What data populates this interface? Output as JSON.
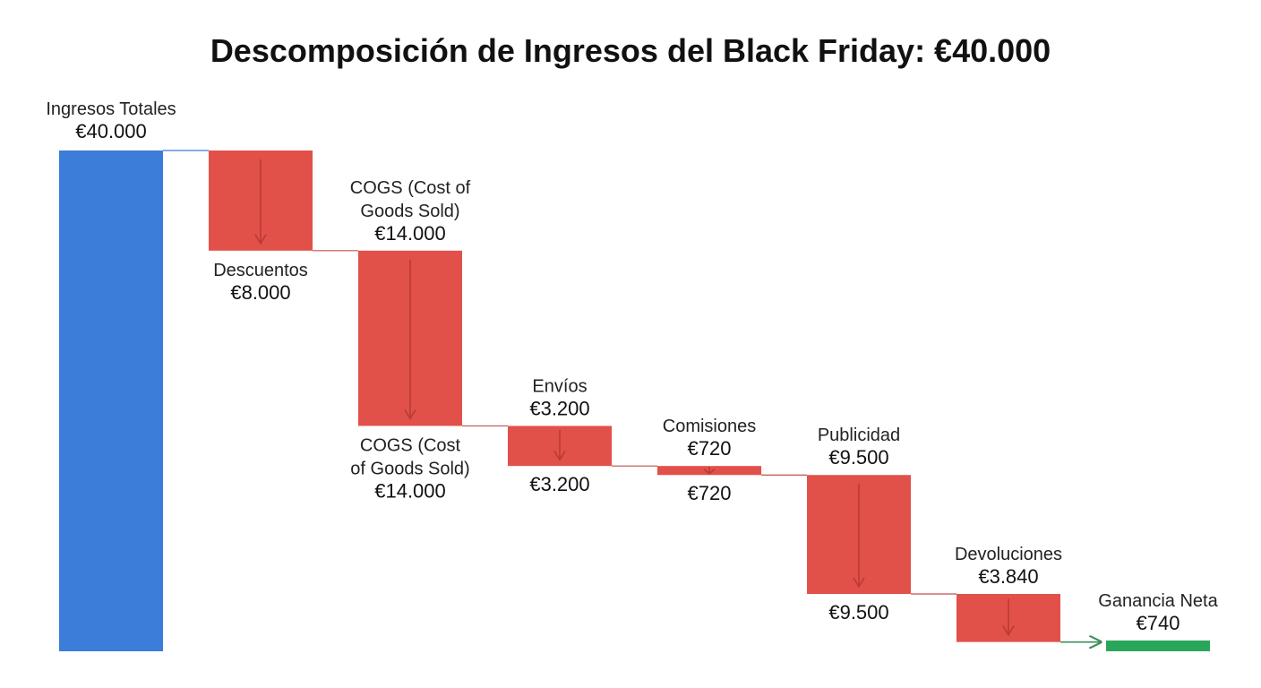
{
  "colors": {
    "total": "#3b7dd8",
    "decrease": "#e2504a",
    "arrow": "#b93b35",
    "result": "#2aa65a",
    "connector": "#c0504d",
    "first_connector": "#3b7dd8",
    "result_arrow": "#3e8e5a"
  },
  "chart_data": {
    "type": "bar",
    "subtype": "waterfall",
    "title": "Descomposición de Ingresos del Black Friday: €40.000",
    "xlabel": "",
    "ylabel": "",
    "ylim": [
      0,
      40000
    ],
    "grid": false,
    "legend": "none",
    "steps": [
      {
        "kind": "total",
        "value": 40000,
        "above_label": [
          "Ingresos Totales",
          "€40.000"
        ]
      },
      {
        "kind": "decrease",
        "value": -8000,
        "below_label": [
          "Descuentos",
          "€8.000"
        ]
      },
      {
        "kind": "decrease",
        "value": -14000,
        "above_label": [
          "COGS (Cost of",
          "Goods Sold)",
          "€14.000"
        ],
        "below_label": [
          "COGS (Cost",
          "of Goods Sold)",
          "€14.000"
        ]
      },
      {
        "kind": "decrease",
        "value": -3200,
        "above_label": [
          "Envíos",
          "€3.200"
        ],
        "below_label": [
          "€3.200"
        ]
      },
      {
        "kind": "decrease",
        "value": -720,
        "above_label": [
          "Comisiones",
          "€720"
        ],
        "below_label": [
          "€720"
        ]
      },
      {
        "kind": "decrease",
        "value": -9500,
        "above_label": [
          "Publicidad",
          "€9.500"
        ],
        "below_label": [
          "€9.500"
        ]
      },
      {
        "kind": "decrease",
        "value": -3840,
        "above_label": [
          "Devoluciones",
          "€3.840"
        ]
      },
      {
        "kind": "result",
        "value": 740,
        "above_label": [
          "Ganancia Neta",
          "€740"
        ]
      }
    ]
  }
}
